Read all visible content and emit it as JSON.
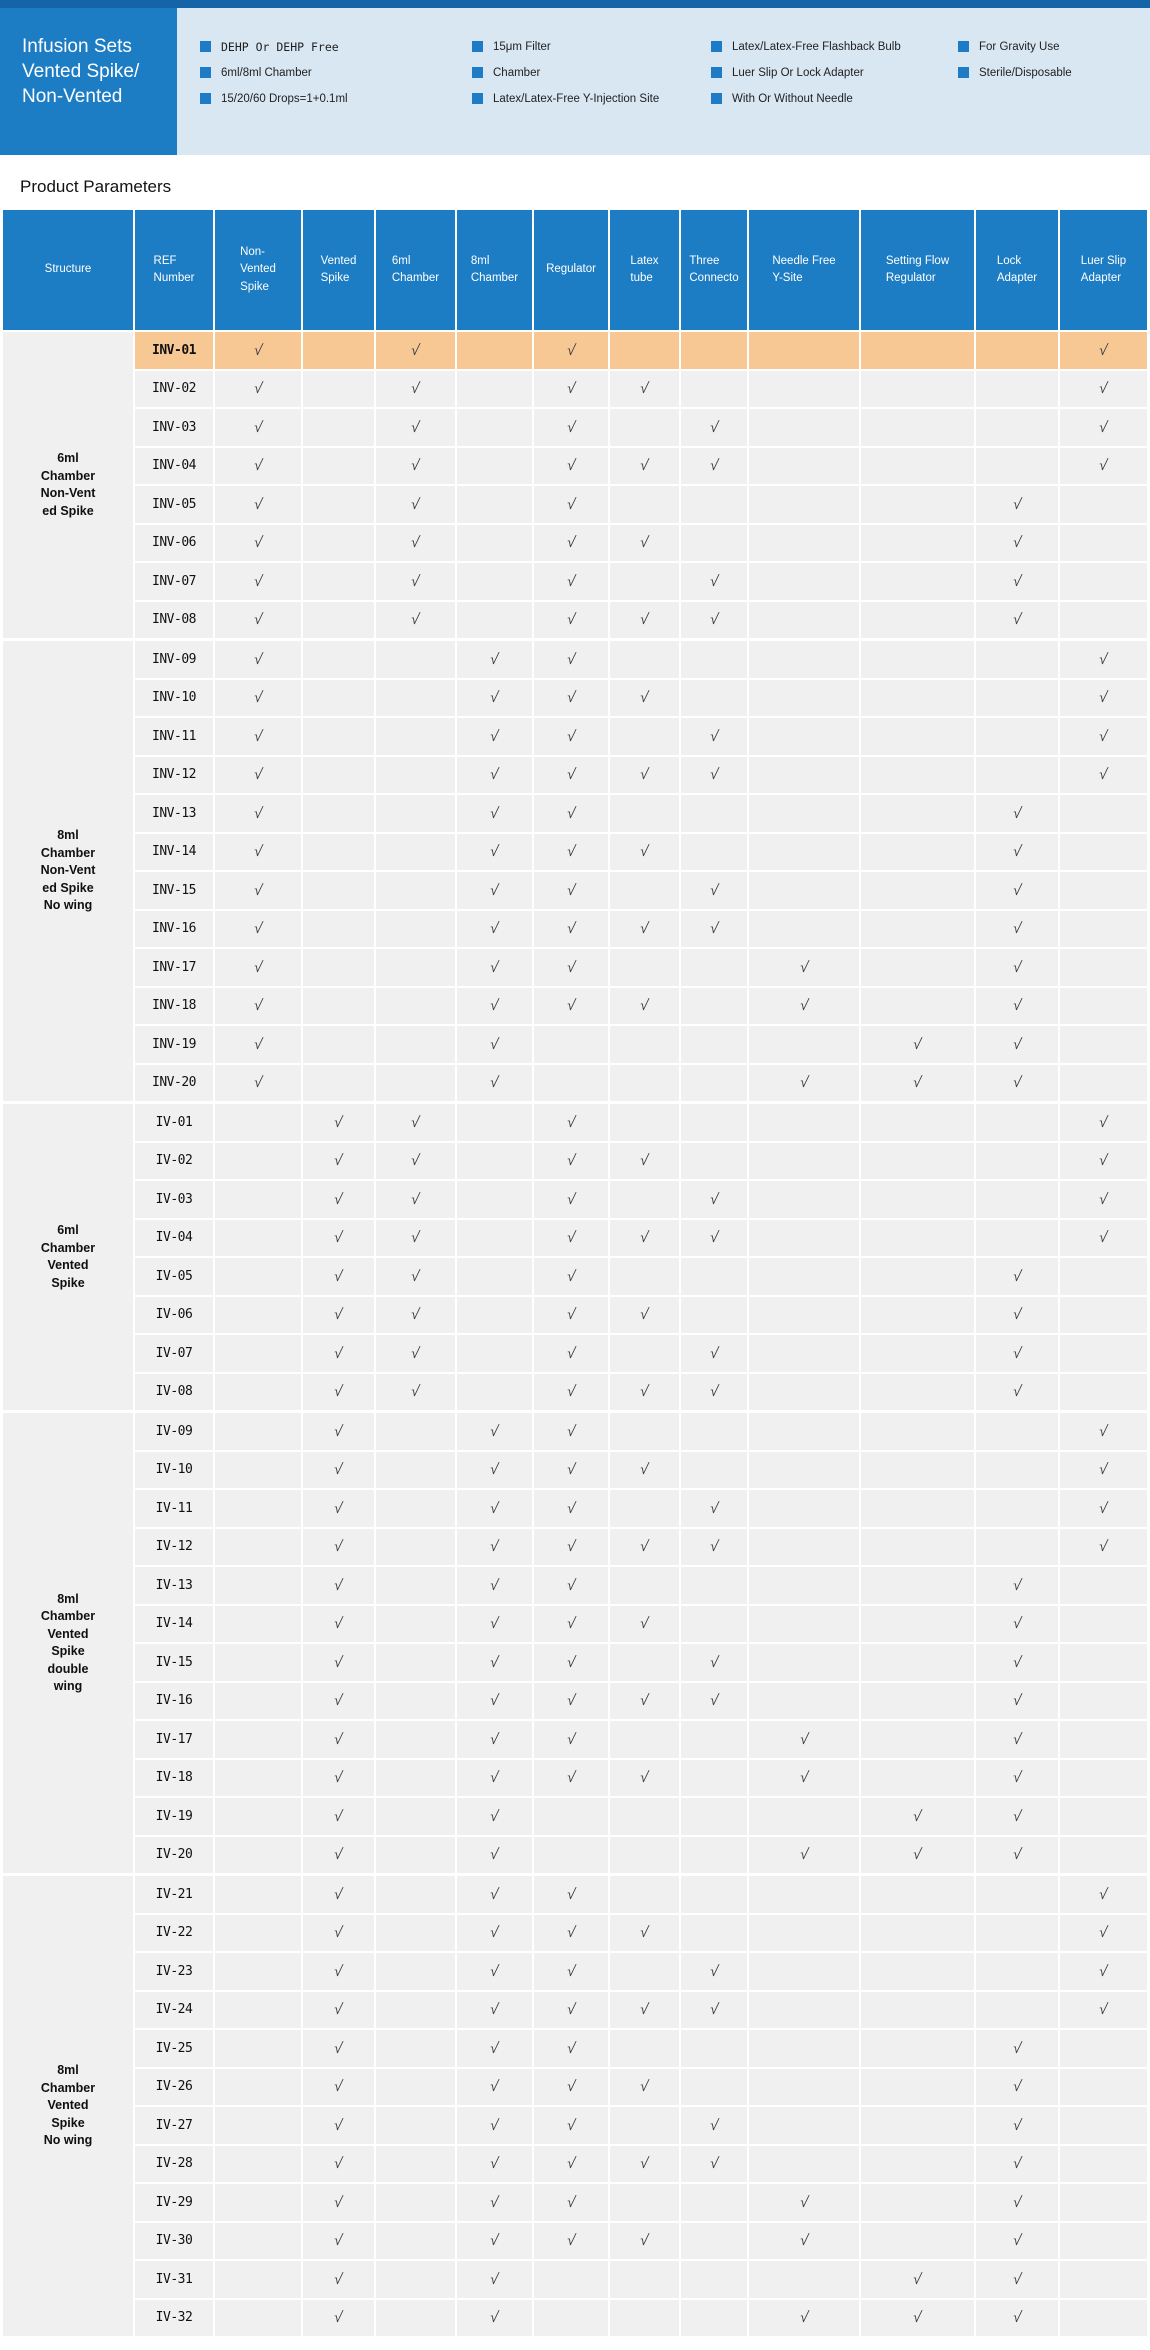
{
  "header": {
    "title": "Infusion Sets\n Vented Spike/\nNon-Vented",
    "features": [
      [
        "DEHP Or DEHP Free",
        "6ml/8ml Chamber",
        "15/20/60 Drops=1+0.1ml"
      ],
      [
        "15μm Filter",
        "Chamber",
        "Latex/Latex-Free Y-Injection Site"
      ],
      [
        "Latex/Latex-Free Flashback Bulb",
        "Luer Slip Or Lock Adapter",
        "With Or Without Needle"
      ],
      [
        "For Gravity Use",
        "Sterile/Disposable"
      ]
    ]
  },
  "section_title": "Product Parameters",
  "colors": {
    "top_bar": "#1464a7",
    "header_blue": "#1c7cc4",
    "panel_light_blue": "#d9e7f3",
    "row_gray": "#f0f0f0",
    "highlight_orange": "#f8c894",
    "check": "#3b3b45"
  },
  "table": {
    "columns": [
      "Structure",
      "REF\nNumber",
      "Non-\nVented\nSpike",
      "Vented\nSpike",
      "6ml\nChamber",
      "8ml\nChamber",
      "Regulator",
      "Latex\ntube",
      "Three\nConnecto",
      "Needle Free\nY-Site",
      "Setting Flow\nRegulator",
      "Lock\nAdapter",
      "Luer  Slip\nAdapter"
    ],
    "check_columns": [
      "Non-Vented Spike",
      "Vented Spike",
      "6ml Chamber",
      "8ml Chamber",
      "Regulator",
      "Latex tube",
      "Three Connecto",
      "Needle Free Y-Site",
      "Setting Flow Regulator",
      "Lock Adapter",
      "Luer Slip Adapter"
    ],
    "check_mark": "√",
    "groups": [
      {
        "structure": "6ml\nChamber\nNon-Vent\ned Spike",
        "rows": [
          {
            "ref": "INV-01",
            "highlight": true,
            "checks": [
              1,
              0,
              1,
              0,
              1,
              0,
              0,
              0,
              0,
              0,
              1
            ]
          },
          {
            "ref": "INV-02",
            "highlight": false,
            "checks": [
              1,
              0,
              1,
              0,
              1,
              1,
              0,
              0,
              0,
              0,
              1
            ]
          },
          {
            "ref": "INV-03",
            "highlight": false,
            "checks": [
              1,
              0,
              1,
              0,
              1,
              0,
              1,
              0,
              0,
              0,
              1
            ]
          },
          {
            "ref": "INV-04",
            "highlight": false,
            "checks": [
              1,
              0,
              1,
              0,
              1,
              1,
              1,
              0,
              0,
              0,
              1
            ]
          },
          {
            "ref": "INV-05",
            "highlight": false,
            "checks": [
              1,
              0,
              1,
              0,
              1,
              0,
              0,
              0,
              0,
              1,
              0
            ]
          },
          {
            "ref": "INV-06",
            "highlight": false,
            "checks": [
              1,
              0,
              1,
              0,
              1,
              1,
              0,
              0,
              0,
              1,
              0
            ]
          },
          {
            "ref": "INV-07",
            "highlight": false,
            "checks": [
              1,
              0,
              1,
              0,
              1,
              0,
              1,
              0,
              0,
              1,
              0
            ]
          },
          {
            "ref": "INV-08",
            "highlight": false,
            "checks": [
              1,
              0,
              1,
              0,
              1,
              1,
              1,
              0,
              0,
              1,
              0
            ]
          }
        ]
      },
      {
        "structure": "8ml\nChamber\nNon-Vent\ned Spike\nNo wing",
        "rows": [
          {
            "ref": "INV-09",
            "highlight": false,
            "checks": [
              1,
              0,
              0,
              1,
              1,
              0,
              0,
              0,
              0,
              0,
              1
            ]
          },
          {
            "ref": "INV-10",
            "highlight": false,
            "checks": [
              1,
              0,
              0,
              1,
              1,
              1,
              0,
              0,
              0,
              0,
              1
            ]
          },
          {
            "ref": "INV-11",
            "highlight": false,
            "checks": [
              1,
              0,
              0,
              1,
              1,
              0,
              1,
              0,
              0,
              0,
              1
            ]
          },
          {
            "ref": "INV-12",
            "highlight": false,
            "checks": [
              1,
              0,
              0,
              1,
              1,
              1,
              1,
              0,
              0,
              0,
              1
            ]
          },
          {
            "ref": "INV-13",
            "highlight": false,
            "checks": [
              1,
              0,
              0,
              1,
              1,
              0,
              0,
              0,
              0,
              1,
              0
            ]
          },
          {
            "ref": "INV-14",
            "highlight": false,
            "checks": [
              1,
              0,
              0,
              1,
              1,
              1,
              0,
              0,
              0,
              1,
              0
            ]
          },
          {
            "ref": "INV-15",
            "highlight": false,
            "checks": [
              1,
              0,
              0,
              1,
              1,
              0,
              1,
              0,
              0,
              1,
              0
            ]
          },
          {
            "ref": "INV-16",
            "highlight": false,
            "checks": [
              1,
              0,
              0,
              1,
              1,
              1,
              1,
              0,
              0,
              1,
              0
            ]
          },
          {
            "ref": "INV-17",
            "highlight": false,
            "checks": [
              1,
              0,
              0,
              1,
              1,
              0,
              0,
              1,
              0,
              1,
              0
            ]
          },
          {
            "ref": "INV-18",
            "highlight": false,
            "checks": [
              1,
              0,
              0,
              1,
              1,
              1,
              0,
              1,
              0,
              1,
              0
            ]
          },
          {
            "ref": "INV-19",
            "highlight": false,
            "checks": [
              1,
              0,
              0,
              1,
              0,
              0,
              0,
              0,
              1,
              1,
              0
            ]
          },
          {
            "ref": "INV-20",
            "highlight": false,
            "checks": [
              1,
              0,
              0,
              1,
              0,
              0,
              0,
              1,
              1,
              1,
              0
            ]
          }
        ]
      },
      {
        "structure": "6ml\nChamber\nVented\nSpike",
        "rows": [
          {
            "ref": "IV-01",
            "highlight": false,
            "checks": [
              0,
              1,
              1,
              0,
              1,
              0,
              0,
              0,
              0,
              0,
              1
            ]
          },
          {
            "ref": "IV-02",
            "highlight": false,
            "checks": [
              0,
              1,
              1,
              0,
              1,
              1,
              0,
              0,
              0,
              0,
              1
            ]
          },
          {
            "ref": "IV-03",
            "highlight": false,
            "checks": [
              0,
              1,
              1,
              0,
              1,
              0,
              1,
              0,
              0,
              0,
              1
            ]
          },
          {
            "ref": "IV-04",
            "highlight": false,
            "checks": [
              0,
              1,
              1,
              0,
              1,
              1,
              1,
              0,
              0,
              0,
              1
            ]
          },
          {
            "ref": "IV-05",
            "highlight": false,
            "checks": [
              0,
              1,
              1,
              0,
              1,
              0,
              0,
              0,
              0,
              1,
              0
            ]
          },
          {
            "ref": "IV-06",
            "highlight": false,
            "checks": [
              0,
              1,
              1,
              0,
              1,
              1,
              0,
              0,
              0,
              1,
              0
            ]
          },
          {
            "ref": "IV-07",
            "highlight": false,
            "checks": [
              0,
              1,
              1,
              0,
              1,
              0,
              1,
              0,
              0,
              1,
              0
            ]
          },
          {
            "ref": "IV-08",
            "highlight": false,
            "checks": [
              0,
              1,
              1,
              0,
              1,
              1,
              1,
              0,
              0,
              1,
              0
            ]
          }
        ]
      },
      {
        "structure": "8ml\nChamber\nVented\nSpike\ndouble\nwing",
        "rows": [
          {
            "ref": "IV-09",
            "highlight": false,
            "checks": [
              0,
              1,
              0,
              1,
              1,
              0,
              0,
              0,
              0,
              0,
              1
            ]
          },
          {
            "ref": "IV-10",
            "highlight": false,
            "checks": [
              0,
              1,
              0,
              1,
              1,
              1,
              0,
              0,
              0,
              0,
              1
            ]
          },
          {
            "ref": "IV-11",
            "highlight": false,
            "checks": [
              0,
              1,
              0,
              1,
              1,
              0,
              1,
              0,
              0,
              0,
              1
            ]
          },
          {
            "ref": "IV-12",
            "highlight": false,
            "checks": [
              0,
              1,
              0,
              1,
              1,
              1,
              1,
              0,
              0,
              0,
              1
            ]
          },
          {
            "ref": "IV-13",
            "highlight": false,
            "checks": [
              0,
              1,
              0,
              1,
              1,
              0,
              0,
              0,
              0,
              1,
              0
            ]
          },
          {
            "ref": "IV-14",
            "highlight": false,
            "checks": [
              0,
              1,
              0,
              1,
              1,
              1,
              0,
              0,
              0,
              1,
              0
            ]
          },
          {
            "ref": "IV-15",
            "highlight": false,
            "checks": [
              0,
              1,
              0,
              1,
              1,
              0,
              1,
              0,
              0,
              1,
              0
            ]
          },
          {
            "ref": "IV-16",
            "highlight": false,
            "checks": [
              0,
              1,
              0,
              1,
              1,
              1,
              1,
              0,
              0,
              1,
              0
            ]
          },
          {
            "ref": "IV-17",
            "highlight": false,
            "checks": [
              0,
              1,
              0,
              1,
              1,
              0,
              0,
              1,
              0,
              1,
              0
            ]
          },
          {
            "ref": "IV-18",
            "highlight": false,
            "checks": [
              0,
              1,
              0,
              1,
              1,
              1,
              0,
              1,
              0,
              1,
              0
            ]
          },
          {
            "ref": "IV-19",
            "highlight": false,
            "checks": [
              0,
              1,
              0,
              1,
              0,
              0,
              0,
              0,
              1,
              1,
              0
            ]
          },
          {
            "ref": "IV-20",
            "highlight": false,
            "checks": [
              0,
              1,
              0,
              1,
              0,
              0,
              0,
              1,
              1,
              1,
              0
            ]
          }
        ]
      },
      {
        "structure": "8ml\nChamber\nVented\nSpike\nNo wing",
        "rows": [
          {
            "ref": "IV-21",
            "highlight": false,
            "checks": [
              0,
              1,
              0,
              1,
              1,
              0,
              0,
              0,
              0,
              0,
              1
            ]
          },
          {
            "ref": "IV-22",
            "highlight": false,
            "checks": [
              0,
              1,
              0,
              1,
              1,
              1,
              0,
              0,
              0,
              0,
              1
            ]
          },
          {
            "ref": "IV-23",
            "highlight": false,
            "checks": [
              0,
              1,
              0,
              1,
              1,
              0,
              1,
              0,
              0,
              0,
              1
            ]
          },
          {
            "ref": "IV-24",
            "highlight": false,
            "checks": [
              0,
              1,
              0,
              1,
              1,
              1,
              1,
              0,
              0,
              0,
              1
            ]
          },
          {
            "ref": "IV-25",
            "highlight": false,
            "checks": [
              0,
              1,
              0,
              1,
              1,
              0,
              0,
              0,
              0,
              1,
              0
            ]
          },
          {
            "ref": "IV-26",
            "highlight": false,
            "checks": [
              0,
              1,
              0,
              1,
              1,
              1,
              0,
              0,
              0,
              1,
              0
            ]
          },
          {
            "ref": "IV-27",
            "highlight": false,
            "checks": [
              0,
              1,
              0,
              1,
              1,
              0,
              1,
              0,
              0,
              1,
              0
            ]
          },
          {
            "ref": "IV-28",
            "highlight": false,
            "checks": [
              0,
              1,
              0,
              1,
              1,
              1,
              1,
              0,
              0,
              1,
              0
            ]
          },
          {
            "ref": "IV-29",
            "highlight": false,
            "checks": [
              0,
              1,
              0,
              1,
              1,
              0,
              0,
              1,
              0,
              1,
              0
            ]
          },
          {
            "ref": "IV-30",
            "highlight": false,
            "checks": [
              0,
              1,
              0,
              1,
              1,
              1,
              0,
              1,
              0,
              1,
              0
            ]
          },
          {
            "ref": "IV-31",
            "highlight": false,
            "checks": [
              0,
              1,
              0,
              1,
              0,
              0,
              0,
              0,
              1,
              1,
              0
            ]
          },
          {
            "ref": "IV-32",
            "highlight": false,
            "checks": [
              0,
              1,
              0,
              1,
              0,
              0,
              0,
              1,
              1,
              1,
              0
            ]
          }
        ]
      }
    ]
  }
}
